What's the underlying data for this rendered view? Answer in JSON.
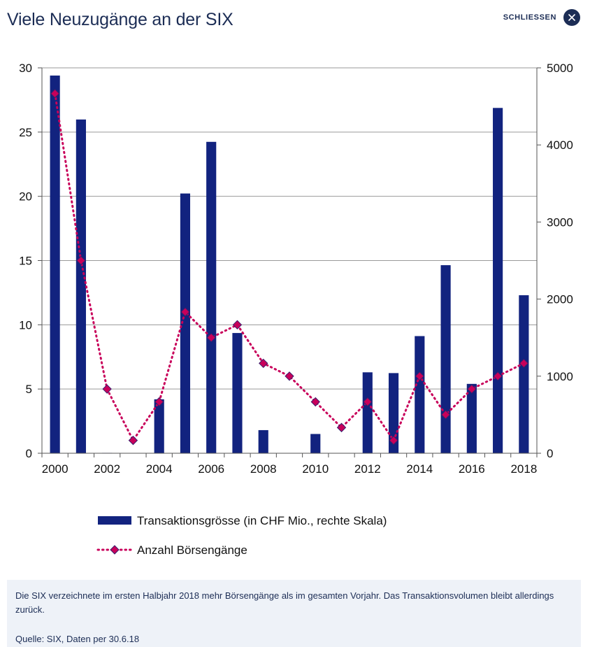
{
  "header": {
    "title": "Viele Neuzugänge an der SIX",
    "close_label": "SCHLIESSEN",
    "close_icon": "close-icon"
  },
  "colors": {
    "bar": "#12237f",
    "line": "#c8005a",
    "marker_fill": "#c8005a",
    "marker_edge": "#3a1f6e",
    "grid": "#9a9a9a",
    "caption_bg": "#eef2f8"
  },
  "chart_data": {
    "type": "bar",
    "x": [
      2000,
      2001,
      2002,
      2003,
      2004,
      2005,
      2006,
      2007,
      2008,
      2009,
      2010,
      2011,
      2012,
      2013,
      2014,
      2015,
      2016,
      2017,
      2018
    ],
    "x_tick_labels": [
      "2000",
      "2002",
      "2004",
      "2006",
      "2008",
      "2010",
      "2012",
      "2014",
      "2016",
      "2018"
    ],
    "left_axis": {
      "ylim": [
        0,
        30
      ],
      "ticks": [
        "0",
        "5",
        "10",
        "15",
        "20",
        "25",
        "30"
      ]
    },
    "right_axis": {
      "ylim": [
        0,
        5000
      ],
      "ticks": [
        "0",
        "1000",
        "2000",
        "3000",
        "4000",
        "5000"
      ]
    },
    "grid": true,
    "legend_position": "bottom",
    "series": [
      {
        "name": "Transaktionsgrösse (in CHF Mio., rechte Skala)",
        "type": "bar",
        "axis": "right",
        "values": [
          4900,
          4330,
          5,
          0,
          700,
          3370,
          4040,
          1560,
          300,
          0,
          250,
          0,
          1050,
          1040,
          1520,
          2440,
          900,
          4480,
          2050
        ]
      },
      {
        "name": "Anzahl Börsengänge",
        "type": "line",
        "axis": "left",
        "values": [
          28,
          15,
          5,
          1,
          4,
          11,
          9,
          10,
          7,
          6,
          4,
          2,
          4,
          1,
          6,
          3,
          5,
          6,
          7
        ]
      }
    ]
  },
  "caption": {
    "text": "Die SIX verzeichnete im ersten Halbjahr 2018 mehr Börsengänge als im gesamten Vorjahr. Das Transaktionsvolumen bleibt allerdings zurück.",
    "source": "Quelle: SIX, Daten per 30.6.18"
  }
}
